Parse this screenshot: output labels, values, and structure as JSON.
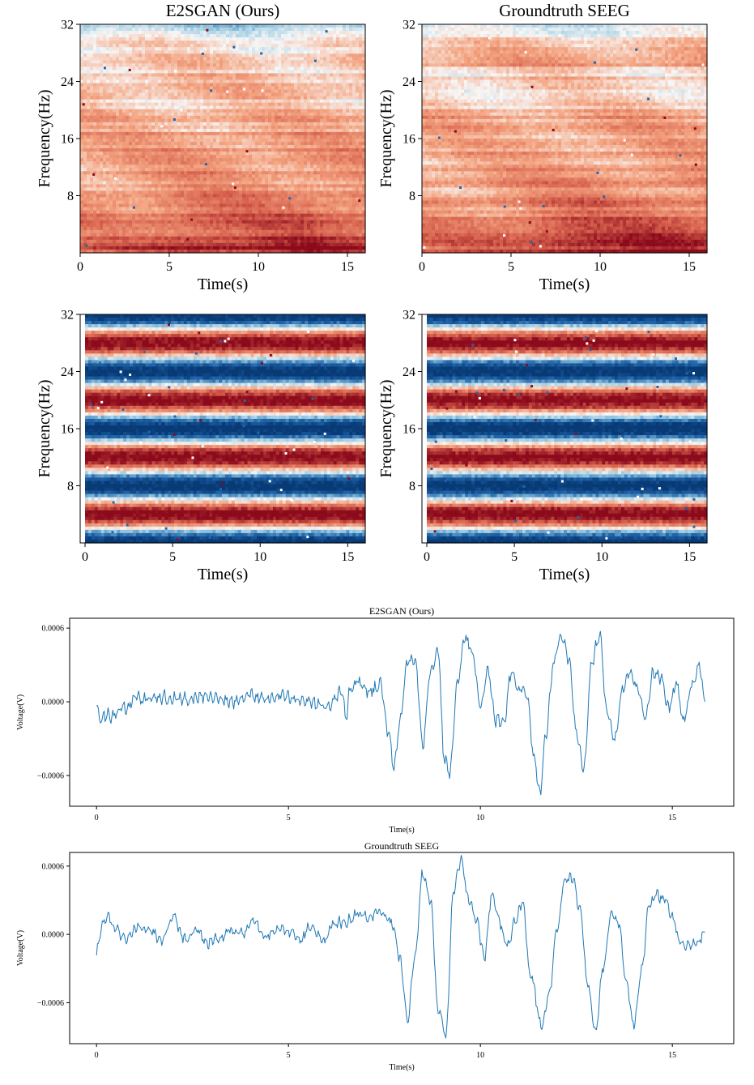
{
  "colors": {
    "red_strong": "#8b0a1c",
    "red": "#d6604d",
    "red_light": "#f4a582",
    "neutral": "#f7f7f7",
    "blue_light": "#92c5de",
    "blue": "#2166ac",
    "blue_strong": "#083a75",
    "line": "#1f77b4"
  },
  "chart_data": [
    {
      "type": "heatmap",
      "id": "spec_pred",
      "title": "E2SGAN (Ours)",
      "xlabel": "Time(s)",
      "ylabel": "Frequency(Hz)",
      "xlim": [
        0,
        16
      ],
      "ylim": [
        0,
        32
      ],
      "xticks": [
        0,
        5,
        10,
        15
      ],
      "yticks": [
        8,
        16,
        24,
        32
      ],
      "pattern": "smooth",
      "low_freq_intensity": [
        0.5,
        0.5,
        0.55,
        0.6,
        0.7,
        0.85,
        0.95,
        1.0,
        1.0,
        0.95,
        0.95,
        0.95,
        1.0,
        1.0,
        0.95,
        0.9,
        0.9
      ],
      "cool_top_band": [
        26,
        32
      ]
    },
    {
      "type": "heatmap",
      "id": "spec_gt",
      "title": "Groundtruth SEEG",
      "xlabel": "Time(s)",
      "ylabel": "Frequency(Hz)",
      "xlim": [
        0,
        16
      ],
      "ylim": [
        0,
        32
      ],
      "xticks": [
        0,
        5,
        10,
        15
      ],
      "yticks": [
        8,
        16,
        24,
        32
      ],
      "pattern": "smooth",
      "low_freq_intensity": [
        0.45,
        0.45,
        0.5,
        0.55,
        0.6,
        0.7,
        0.8,
        0.9,
        0.95,
        1.0,
        0.95,
        0.9,
        0.95,
        1.0,
        1.0,
        0.95,
        0.95
      ],
      "cool_top_band": [
        29,
        32
      ]
    },
    {
      "type": "heatmap",
      "id": "phase_pred",
      "title": "",
      "xlabel": "Time(s)",
      "ylabel": "Frequency(Hz)",
      "xlim": [
        0,
        16
      ],
      "ylim": [
        0,
        32
      ],
      "xticks": [
        0,
        5,
        10,
        15
      ],
      "yticks": [
        8,
        16,
        24,
        32
      ],
      "pattern": "banded",
      "band_centers": [
        4,
        12,
        20,
        28
      ],
      "band_period": 8
    },
    {
      "type": "heatmap",
      "id": "phase_gt",
      "title": "",
      "xlabel": "Time(s)",
      "ylabel": "Frequency(Hz)",
      "xlim": [
        0,
        16
      ],
      "ylim": [
        0,
        32
      ],
      "xticks": [
        0,
        5,
        10,
        15
      ],
      "yticks": [
        8,
        16,
        24,
        32
      ],
      "pattern": "banded",
      "band_centers": [
        4,
        12,
        20,
        28
      ],
      "band_period": 8
    },
    {
      "type": "line",
      "id": "wave_pred",
      "title": "E2SGAN (Ours)",
      "xlabel": "Time(s)",
      "ylabel": "Voltage(V)",
      "xlim": [
        -0.7,
        16.6
      ],
      "ylim": [
        -0.00085,
        0.00068
      ],
      "xticks": [
        0,
        5,
        10,
        15
      ],
      "yticks": [
        -0.0006,
        0.0,
        0.0006
      ],
      "ytick_labels": [
        "−0.0006",
        "0.0000",
        "0.0006"
      ],
      "x": [
        0,
        0.1,
        0.2,
        0.4,
        0.6,
        0.8,
        1.0,
        1.3,
        1.6,
        2.0,
        2.4,
        2.8,
        3.2,
        3.6,
        4.0,
        4.4,
        4.8,
        5.2,
        5.6,
        6.0,
        6.4,
        6.5,
        6.6,
        6.8,
        7.0,
        7.2,
        7.4,
        7.6,
        7.75,
        7.9,
        8.1,
        8.3,
        8.5,
        8.7,
        8.9,
        9.05,
        9.2,
        9.4,
        9.6,
        9.8,
        10.0,
        10.2,
        10.4,
        10.6,
        10.8,
        11.0,
        11.2,
        11.4,
        11.55,
        11.7,
        11.9,
        12.1,
        12.3,
        12.5,
        12.7,
        12.9,
        13.1,
        13.3,
        13.5,
        13.7,
        13.9,
        14.1,
        14.3,
        14.5,
        14.7,
        14.9,
        15.1,
        15.3,
        15.5,
        15.7,
        15.85
      ],
      "y": [
        0.0,
        -0.00015,
        -0.0001,
        -0.00012,
        -6e-05,
        -4e-05,
        3e-05,
        2e-05,
        4e-05,
        3e-05,
        2e-05,
        5e-05,
        2e-05,
        0.0,
        5e-05,
        3e-05,
        6e-05,
        2e-05,
        0.0,
        -5e-05,
        8e-05,
        -0.00014,
        0.0001,
        0.00018,
        8e-05,
        0.0001,
        0.00015,
        -0.00025,
        -0.00055,
        -0.00015,
        0.00032,
        0.00036,
        -0.00035,
        0.00025,
        0.00042,
        -0.00045,
        -0.00058,
        0.00015,
        0.00052,
        0.0004,
        -5e-05,
        0.00025,
        -0.00015,
        -0.00018,
        0.00022,
        0.0001,
        8e-05,
        -0.00045,
        -0.00075,
        -0.0003,
        0.0003,
        0.00055,
        0.00035,
        -0.00025,
        -0.00055,
        0.00032,
        0.00055,
        -0.0001,
        -0.0003,
        0.0001,
        0.00025,
        0.0001,
        -0.00015,
        0.00025,
        0.0002,
        -5e-05,
        0.00015,
        -0.00015,
        0.00012,
        0.0003,
        0.0
      ]
    },
    {
      "type": "line",
      "id": "wave_gt",
      "title": "Groundtruth SEEG",
      "xlabel": "Time(s)",
      "ylabel": "Voltage(V)",
      "xlim": [
        -0.7,
        16.6
      ],
      "ylim": [
        -0.00096,
        0.00072
      ],
      "xticks": [
        0,
        5,
        10,
        15
      ],
      "yticks": [
        -0.0006,
        0.0,
        0.0006
      ],
      "ytick_labels": [
        "−0.0006",
        "0.0000",
        "0.0006"
      ],
      "x": [
        0,
        0.15,
        0.3,
        0.5,
        0.7,
        0.9,
        1.1,
        1.4,
        1.7,
        2.0,
        2.3,
        2.6,
        2.9,
        3.2,
        3.5,
        3.8,
        4.1,
        4.4,
        4.7,
        5.0,
        5.3,
        5.6,
        5.9,
        6.2,
        6.5,
        6.8,
        7.1,
        7.4,
        7.7,
        7.9,
        8.1,
        8.3,
        8.5,
        8.7,
        8.9,
        9.1,
        9.3,
        9.5,
        9.7,
        9.9,
        10.1,
        10.3,
        10.5,
        10.7,
        10.9,
        11.1,
        11.3,
        11.6,
        11.8,
        12.0,
        12.2,
        12.4,
        12.6,
        12.8,
        13.0,
        13.2,
        13.4,
        13.6,
        13.8,
        14.0,
        14.2,
        14.4,
        14.6,
        14.8,
        15.0,
        15.2,
        15.4,
        15.6,
        15.85
      ],
      "y": [
        -0.00015,
        8e-05,
        0.00015,
        5e-05,
        -5e-05,
        0.0,
        8e-05,
        3e-05,
        -4e-05,
        0.00015,
        -5e-05,
        5e-05,
        -8e-05,
        -3e-05,
        5e-05,
        0.0,
        0.00012,
        -2e-05,
        6e-05,
        2e-05,
        -5e-05,
        8e-05,
        -6e-05,
        0.0001,
        0.00012,
        0.00018,
        0.00015,
        0.0002,
        0.0001,
        -0.0002,
        -0.00075,
        -0.0002,
        0.00055,
        0.0003,
        -0.00065,
        -0.0009,
        0.0004,
        0.00065,
        0.0003,
        0.00012,
        -0.0002,
        0.00035,
        0.0001,
        -0.0001,
        0.0001,
        0.0003,
        -0.00035,
        -0.0008,
        -0.0005,
        5e-05,
        0.00048,
        0.0005,
        0.0002,
        -0.00045,
        -0.00085,
        -0.0003,
        0.00018,
        0.0001,
        -0.0004,
        -0.0008,
        -0.0003,
        0.00025,
        0.00035,
        0.0003,
        0.00015,
        -5e-05,
        -0.0001,
        -8e-05,
        2e-05
      ]
    }
  ]
}
